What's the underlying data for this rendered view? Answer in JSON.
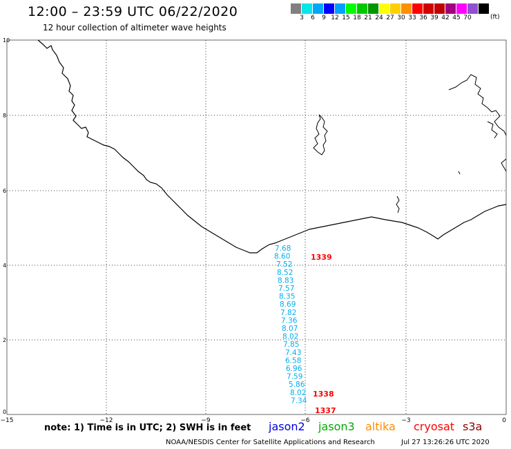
{
  "header": {
    "title": "12:00 – 23:59 UTC 06/22/2020",
    "subtitle": "12 hour collection of altimeter wave heights"
  },
  "legend": {
    "unit": "(ft)",
    "colors": [
      "#808080",
      "#00e8e8",
      "#00a8f8",
      "#0000ff",
      "#00a0ff",
      "#00ff00",
      "#00c800",
      "#009600",
      "#ffff00",
      "#ffd000",
      "#ff9000",
      "#ff0000",
      "#d00000",
      "#c00000",
      "#a00080",
      "#ff00ff",
      "#9050d0",
      "#000000"
    ],
    "labels": [
      "3",
      "6",
      "9",
      "12",
      "15",
      "18",
      "21",
      "24",
      "27",
      "30",
      "33",
      "36",
      "39",
      "42",
      "45",
      "70"
    ]
  },
  "axes": {
    "x_ticks": [
      "−15",
      "−12",
      "−9",
      "−6",
      "−3",
      "0"
    ],
    "y_ticks": [
      "0",
      "2",
      "4",
      "6",
      "8",
      "10"
    ]
  },
  "track": {
    "color": "#00aeee",
    "swh_values": [
      "7.68",
      "8.60",
      "7.52",
      "8.52",
      "8.83",
      "7.57",
      "8.35",
      "8.69",
      "7.82",
      "7.36",
      "8.07",
      "8.02",
      "7.85",
      "7.43",
      "6.58",
      "6.96",
      "7.59",
      "5.86",
      "8.02",
      "7.34"
    ],
    "time_labels": [
      "1339",
      "1338",
      "1337"
    ],
    "time_color": "#ff0000"
  },
  "footer": {
    "note": "note:  1) Time is in UTC;  2) SWH is in feet",
    "satellites": [
      {
        "name": "jason2",
        "color": "#0000dd"
      },
      {
        "name": "jason3",
        "color": "#00aa00"
      },
      {
        "name": "altika",
        "color": "#ff8c00"
      },
      {
        "name": "cryosat",
        "color": "#ff0000"
      },
      {
        "name": "s3a",
        "color": "#8b0000"
      }
    ],
    "credit": "NOAA/NESDIS Center for Satellite Applications and Research",
    "timestamp": "Jul 27 13:26:26 UTC 2020"
  }
}
